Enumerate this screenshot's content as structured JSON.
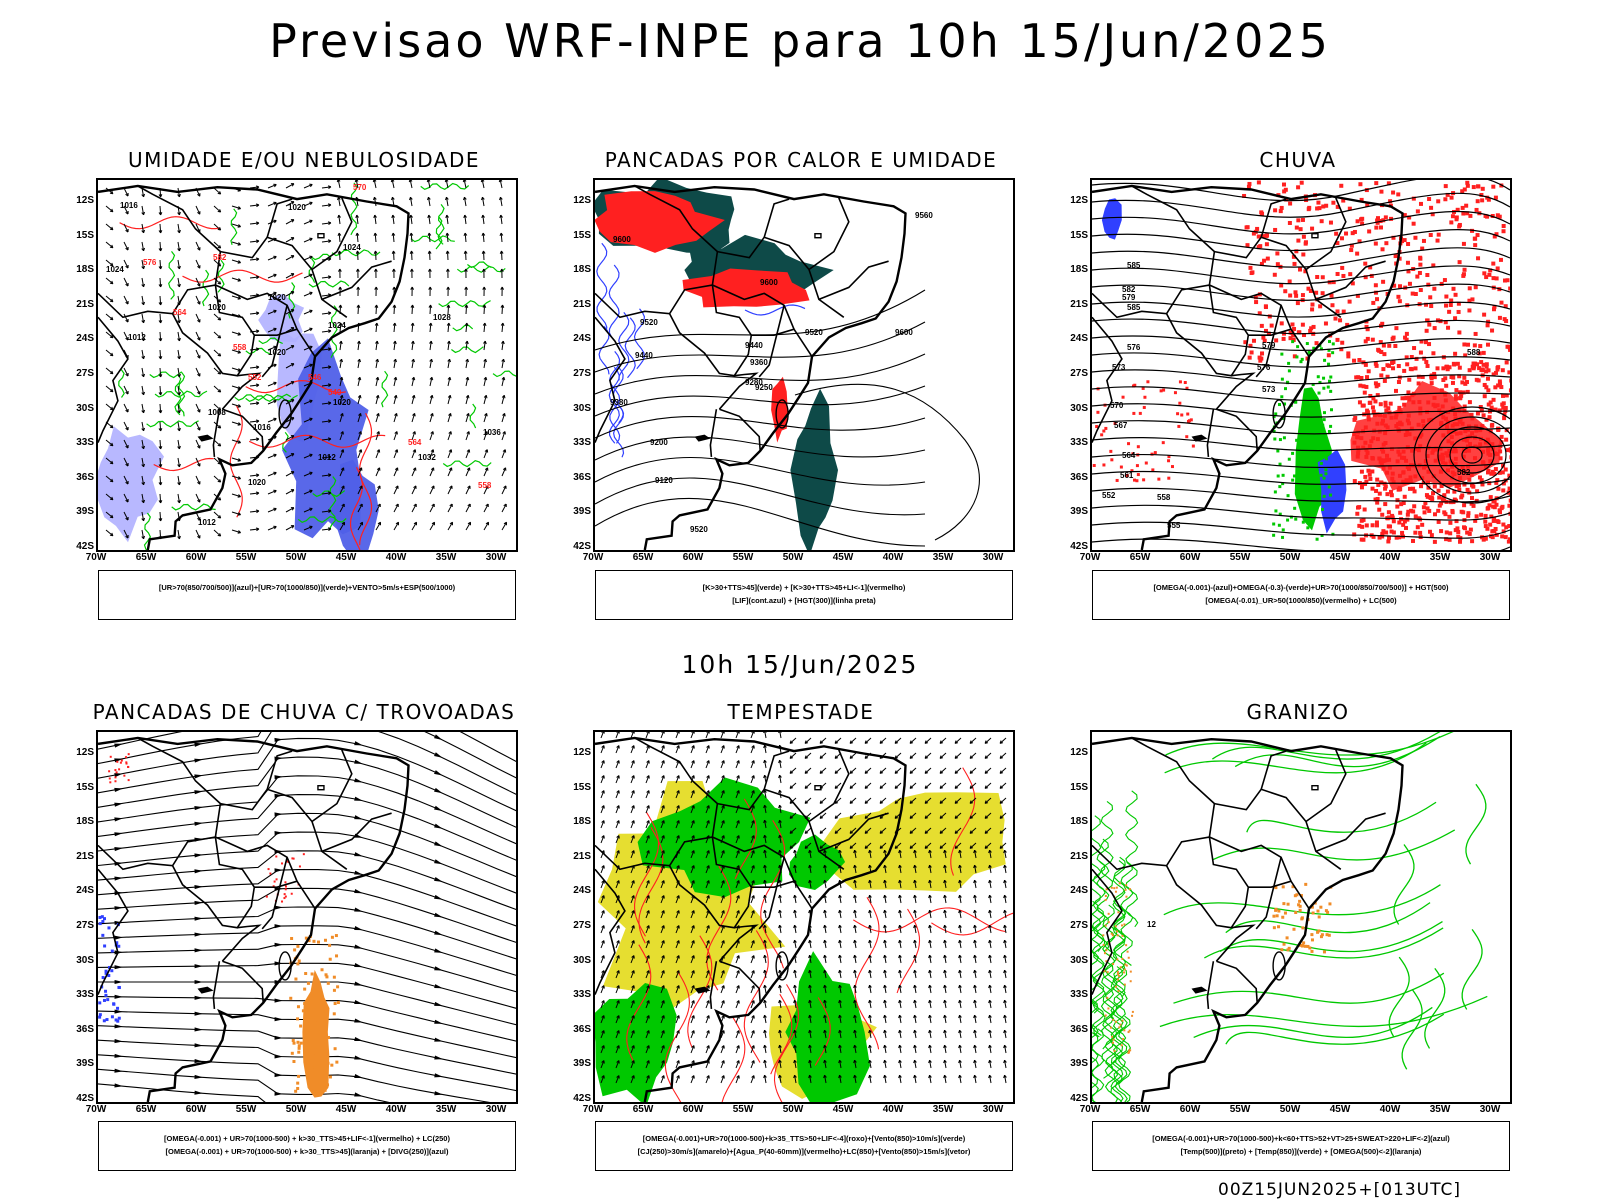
{
  "title": "Previsao WRF-INPE  para 10h 15/Jun/2025",
  "mid_title": "10h 15/Jun/2025",
  "footer": "00Z15JUN2025+[013UTC]",
  "axes": {
    "lat_labels": [
      "12S",
      "15S",
      "18S",
      "21S",
      "24S",
      "27S",
      "30S",
      "33S",
      "36S",
      "39S",
      "42S"
    ],
    "lon_labels": [
      "70W",
      "65W",
      "60W",
      "55W",
      "50W",
      "45W",
      "40W",
      "35W",
      "30W"
    ]
  },
  "colors": {
    "green": "#00c800",
    "red": "#ff2020",
    "blue": "#3040ff",
    "dark_teal": "#0e4a48",
    "yellow": "#e6de30",
    "orange": "#f08c28",
    "lavender": "#b0b0ff",
    "mid_blue": "#5060e8"
  },
  "panels": [
    {
      "title": "UMIDADE E/OU NEBULOSIDADE",
      "legend": [
        "[UR>70(850/700/500)](azul)+[UR>70(1000/850)](verde)+VENTO>5m/s+ESP(500/1000)"
      ]
    },
    {
      "title": "PANCADAS POR CALOR E UMIDADE",
      "legend": [
        "[K>30+TTS>45](verde) + [K>30+TTS>45+LI<-1](vermelho)",
        "[LIF](cont.azul) + [HGT(300)](linha preta)"
      ]
    },
    {
      "title": "CHUVA",
      "legend": [
        "[OMEGA(-0.001)-(azul)+OMEGA(-0.3)-(verde)+UR>70(1000/850/700/500)] + HGT(500)",
        "[OMEGA(-0.01)_UR>50(1000/850)(vermelho) + LC(500)"
      ]
    },
    {
      "title": "PANCADAS DE CHUVA C/ TROVOADAS",
      "legend": [
        "[OMEGA(-0.001) + UR>70(1000-500) + k>30_TTS>45+LIF<-1](vermelho) + LC(250)",
        "[OMEGA(-0.001) + UR>70(1000-500) + k>30_TTS>45](laranja) + [DIVG(250)](azul)"
      ]
    },
    {
      "title": "TEMPESTADE",
      "legend": [
        "[OMEGA(-0.001)+UR>70(1000-500)+k>35_TTS>50+LIF<-4](roxo)+[Vento(850)>10m/s](verde)",
        "[CJ(250)>30m/s](amarelo)+[Agua_P(40-60mm)](vermelho)+LC(850)+[Vento(850)>15m/s](vetor)"
      ]
    },
    {
      "title": "GRANIZO",
      "legend": [
        "[OMEGA(-0.001)+UR>70(1000-500)+k<60+TTS>52+VT>25+SWEAT>220+LIF<-2](azul)",
        "[Temp(500)](preto) + [Temp(850)](verde) + [OMEGA(500)<-2](laranja)"
      ]
    }
  ],
  "contour_labels": {
    "p1": [
      "1016",
      "1020",
      "1024",
      "1024",
      "1020",
      "1020",
      "1028",
      "1024",
      "1020",
      "1012",
      "1008",
      "1016",
      "1012",
      "1020",
      "1032",
      "1036",
      "1020",
      "1012"
    ],
    "p1_red": [
      "570",
      "576",
      "582",
      "564",
      "558",
      "552",
      "546",
      "540",
      "564",
      "558"
    ],
    "p2": [
      "9560",
      "9600",
      "9600",
      "9520",
      "9440",
      "9520",
      "9600",
      "9360",
      "9440",
      "9280",
      "9250",
      "9380",
      "9200",
      "9120",
      "9520"
    ],
    "p3": [
      "585",
      "582",
      "579",
      "576",
      "573",
      "570",
      "567",
      "564",
      "561",
      "558",
      "555",
      "552",
      "588",
      "579",
      "576",
      "573",
      "582",
      "585"
    ],
    "p6": [
      "12"
    ]
  }
}
